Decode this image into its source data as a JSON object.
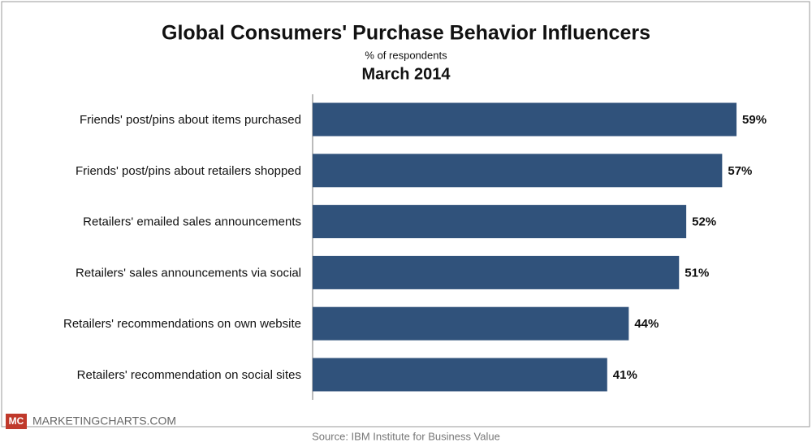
{
  "chart_data": {
    "type": "bar",
    "orientation": "horizontal",
    "title": "Global Consumers' Purchase Behavior Influencers",
    "subtitle": "% of respondents",
    "date": "March 2014",
    "categories": [
      "Friends' post/pins about items purchased",
      "Friends' post/pins about retailers shopped",
      "Retailers' emailed sales announcements",
      "Retailers' sales announcements via social",
      "Retailers' recommendations on own website",
      "Retailers' recommendation on social sites"
    ],
    "values": [
      59,
      57,
      52,
      51,
      44,
      41
    ],
    "value_labels": [
      "59%",
      "57%",
      "52%",
      "51%",
      "44%",
      "41%"
    ],
    "color": "#30527b",
    "xlim": [
      0,
      66
    ],
    "logo": "MC",
    "brand": "MARKETINGCHARTS.COM",
    "source": "Source: IBM Institute for Business Value"
  }
}
